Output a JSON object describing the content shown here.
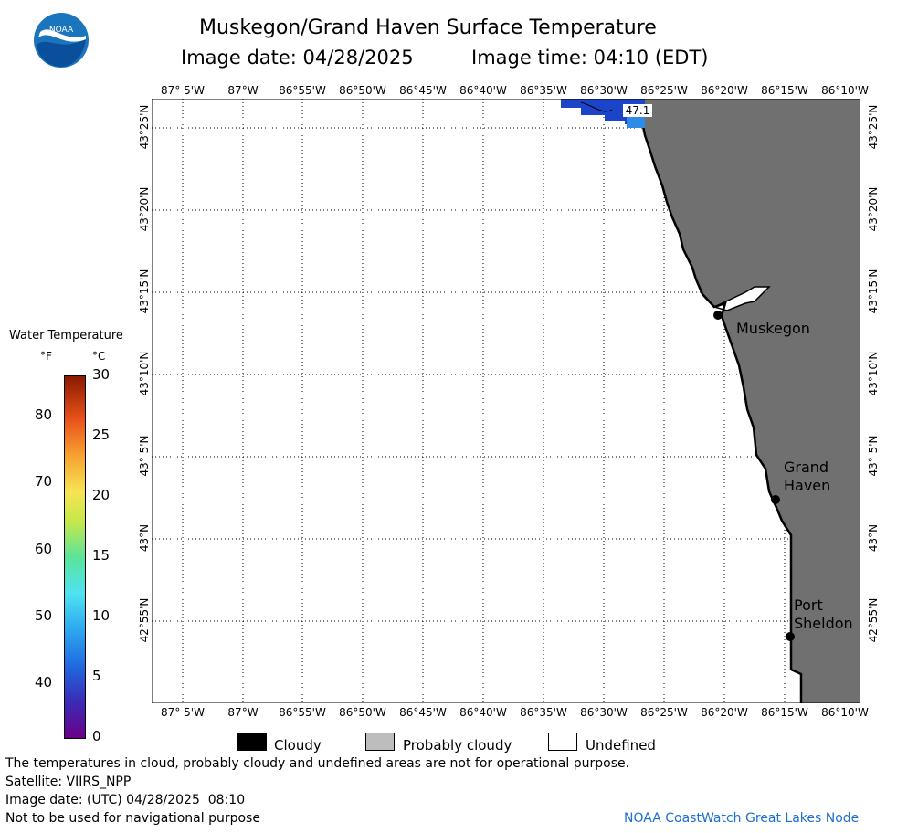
{
  "header": {
    "title": "Muskegon/Grand Haven Surface Temperature",
    "date_label": "Image date: 04/28/2025",
    "time_label": "Image time: 04:10 (EDT)",
    "logo_text": "NOAA"
  },
  "map": {
    "lon_ticks": [
      "87° 5'W",
      "87°W",
      "86°55'W",
      "86°50'W",
      "86°45'W",
      "86°40'W",
      "86°35'W",
      "86°30'W",
      "86°25'W",
      "86°20'W",
      "86°15'W",
      "86°10'W"
    ],
    "lat_ticks": [
      "43°25'N",
      "43°20'N",
      "43°15'N",
      "43°10'N",
      "43° 5'N",
      "43°N",
      "42°55'N"
    ],
    "cities": [
      {
        "name_lines": [
          "Muskegon"
        ]
      },
      {
        "name_lines": [
          "Grand",
          "Haven"
        ]
      },
      {
        "name_lines": [
          "Port",
          "Sheldon"
        ]
      }
    ],
    "temperature_label": "47.1",
    "colors": {
      "land": "#707070",
      "water": "#ffffff",
      "grid": "#000000",
      "warm_water": "#2f6fe6",
      "cool_water": "#1c44c8"
    }
  },
  "colorbar": {
    "title": "Water Temperature",
    "unit_f": "°F",
    "unit_c": "°C",
    "f_ticks": [
      "80",
      "70",
      "60",
      "50",
      "40"
    ],
    "c_ticks": [
      "30",
      "25",
      "20",
      "15",
      "10",
      "5",
      "0"
    ]
  },
  "legend": {
    "items": [
      {
        "label": "Cloudy",
        "color": "#000000"
      },
      {
        "label": "Probably cloudy",
        "color": "#bdbdbd"
      },
      {
        "label": "Undefined",
        "color": "#ffffff"
      }
    ]
  },
  "footer": {
    "note": "The temperatures in cloud, probably cloudy and undefined areas are not for operational purpose.",
    "satellite": "Satellite: VIIRS_NPP",
    "utc_date": "Image date: (UTC) 04/28/2025  08:10",
    "nav_warning": "Not to be used for navigational purpose",
    "credit": "NOAA CoastWatch Great Lakes Node"
  }
}
